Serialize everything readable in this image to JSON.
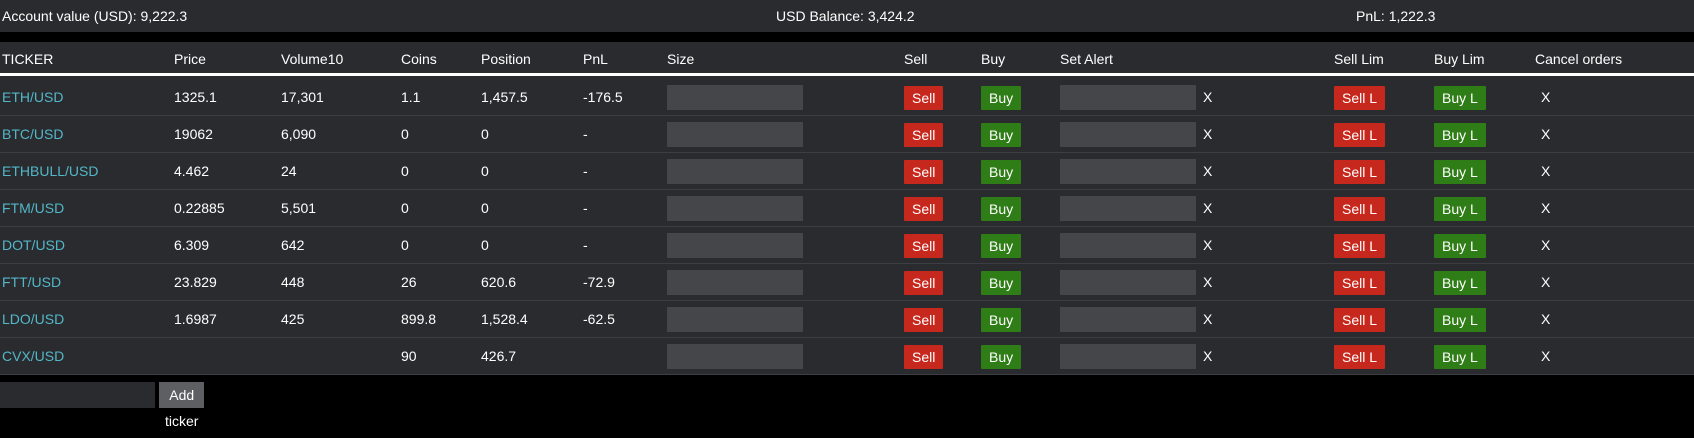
{
  "summary": {
    "account_value": "Account value (USD): 9,222.3",
    "usd_balance": "USD Balance: 3,424.2",
    "pnl": "PnL: 1,222.3"
  },
  "table": {
    "headers": {
      "ticker": "TICKER",
      "price": "Price",
      "volume10": "Volume10",
      "coins": "Coins",
      "position": "Position",
      "pnl": "PnL",
      "size": "Size",
      "sell": "Sell",
      "buy": "Buy",
      "set_alert": "Set Alert",
      "sell_lim": "Sell Lim",
      "buy_lim": "Buy Lim",
      "cancel_orders": "Cancel orders"
    },
    "rows": [
      {
        "ticker": "ETH/USD",
        "price": "1325.1",
        "volume10": "17,301",
        "coins": "1.1",
        "position": "1,457.5",
        "pnl": "-176.5"
      },
      {
        "ticker": "BTC/USD",
        "price": "19062",
        "volume10": "6,090",
        "coins": "0",
        "position": "0",
        "pnl": "-"
      },
      {
        "ticker": "ETHBULL/USD",
        "price": "4.462",
        "volume10": "24",
        "coins": "0",
        "position": "0",
        "pnl": "-"
      },
      {
        "ticker": "FTM/USD",
        "price": "0.22885",
        "volume10": "5,501",
        "coins": "0",
        "position": "0",
        "pnl": "-"
      },
      {
        "ticker": "DOT/USD",
        "price": "6.309",
        "volume10": "642",
        "coins": "0",
        "position": "0",
        "pnl": "-"
      },
      {
        "ticker": "FTT/USD",
        "price": "23.829",
        "volume10": "448",
        "coins": "26",
        "position": "620.6",
        "pnl": "-72.9"
      },
      {
        "ticker": "LDO/USD",
        "price": "1.6987",
        "volume10": "425",
        "coins": "899.8",
        "position": "1,528.4",
        "pnl": "-62.5"
      },
      {
        "ticker": "CVX/USD",
        "price": "",
        "volume10": "",
        "coins": "90",
        "position": "426.7",
        "pnl": ""
      }
    ]
  },
  "buttons": {
    "sell": "Sell",
    "buy": "Buy",
    "sell_limit": "Sell L",
    "buy_limit": "Buy L",
    "clear_alert": "X",
    "cancel": "X",
    "add_ticker": "Add ticker"
  },
  "add_ticker_input": {
    "value": "",
    "placeholder": ""
  },
  "colors": {
    "sell": "#c7281d",
    "buy": "#2f7d16",
    "ticker_link": "#53b7c9",
    "panel": "#2a2b2e"
  }
}
